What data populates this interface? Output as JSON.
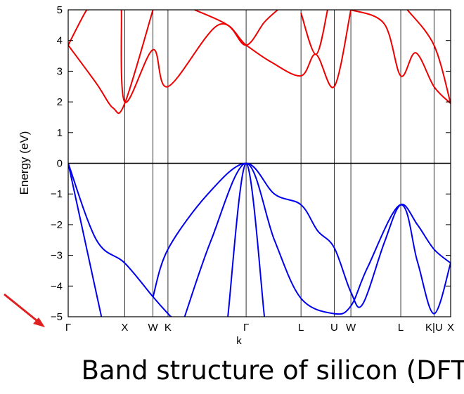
{
  "chart_data": {
    "type": "line",
    "title": "",
    "xlabel": "k",
    "ylabel": "Energy (eV)",
    "caption": "Band structure of silicon (DFT)",
    "ylim": [
      -5,
      5
    ],
    "xlim": [
      0,
      11.5
    ],
    "yticks": [
      "5",
      "4",
      "3",
      "2",
      "1",
      "0",
      "−1",
      "−2",
      "−3",
      "−4",
      "−5"
    ],
    "ytick_values": [
      5,
      4,
      3,
      2,
      1,
      0,
      -1,
      -2,
      -3,
      -4,
      -5
    ],
    "kpoints": [
      {
        "label": "Γ",
        "x": 0
      },
      {
        "label": "X",
        "x": 1.7
      },
      {
        "label": "W",
        "x": 2.55
      },
      {
        "label": "K",
        "x": 3.0
      },
      {
        "label": "Γ",
        "x": 5.35
      },
      {
        "label": "L",
        "x": 7.0
      },
      {
        "label": "U",
        "x": 8.0
      },
      {
        "label": "W",
        "x": 8.5
      },
      {
        "label": "L",
        "x": 10.0
      },
      {
        "label": "K|U",
        "x": 11.0
      },
      {
        "label": "X",
        "x": 11.5
      }
    ],
    "series": [
      {
        "color": "#0000ee",
        "points": [
          [
            0,
            0
          ],
          [
            0.85,
            -2.5
          ],
          [
            1.7,
            -3.25
          ],
          [
            2.55,
            -4.35
          ],
          [
            3.0,
            -4.9
          ],
          [
            3.1,
            -5.0
          ]
        ]
      },
      {
        "color": "#0000ee",
        "points": [
          [
            0,
            0
          ],
          [
            0.8,
            -4.0
          ],
          [
            1.0,
            -5.0
          ]
        ]
      },
      {
        "color": "#0000ee",
        "points": [
          [
            2.55,
            -4.35
          ],
          [
            3.0,
            -2.8
          ],
          [
            4.2,
            -1.0
          ],
          [
            5.35,
            0
          ],
          [
            6.2,
            -1.0
          ],
          [
            7.0,
            -1.35
          ],
          [
            7.5,
            -2.2
          ],
          [
            8.0,
            -2.75
          ],
          [
            8.5,
            -4.2
          ],
          [
            8.85,
            -4.6
          ],
          [
            9.5,
            -2.6
          ],
          [
            10.0,
            -1.35
          ],
          [
            10.5,
            -2.0
          ],
          [
            11.0,
            -2.8
          ],
          [
            11.5,
            -3.25
          ]
        ]
      },
      {
        "color": "#0000ee",
        "points": [
          [
            3.5,
            -5.0
          ],
          [
            4.3,
            -2.5
          ],
          [
            5.35,
            0
          ],
          [
            6.2,
            -2.5
          ],
          [
            7.0,
            -4.4
          ],
          [
            8.0,
            -4.9
          ],
          [
            8.5,
            -4.65
          ],
          [
            9.0,
            -3.4
          ],
          [
            10.0,
            -1.35
          ],
          [
            10.5,
            -3.2
          ],
          [
            11.0,
            -4.9
          ],
          [
            11.5,
            -3.25
          ]
        ]
      },
      {
        "color": "#0000ee",
        "points": [
          [
            4.8,
            -5.0
          ],
          [
            5.35,
            0
          ],
          [
            5.9,
            -5.0
          ]
        ]
      },
      {
        "color": "#ee0000",
        "points": [
          [
            0,
            3.85
          ],
          [
            0.85,
            2.6
          ],
          [
            1.35,
            1.8
          ],
          [
            1.7,
            1.95
          ],
          [
            2.55,
            5.0
          ]
        ]
      },
      {
        "color": "#ee0000",
        "points": [
          [
            0,
            3.85
          ],
          [
            0.5,
            4.9
          ],
          [
            0.6,
            5.0
          ]
        ]
      },
      {
        "color": "#ee0000",
        "points": [
          [
            1.6,
            5.0
          ],
          [
            1.7,
            2.0
          ],
          [
            2.55,
            3.7
          ],
          [
            3.0,
            2.5
          ],
          [
            4.5,
            4.5
          ],
          [
            5.35,
            3.85
          ],
          [
            6.1,
            3.3
          ],
          [
            7.0,
            2.85
          ],
          [
            7.45,
            3.55
          ],
          [
            8.0,
            2.5
          ],
          [
            8.5,
            5.0
          ]
        ]
      },
      {
        "color": "#ee0000",
        "points": [
          [
            3.8,
            5.0
          ],
          [
            4.8,
            4.5
          ],
          [
            5.35,
            3.85
          ],
          [
            5.9,
            4.6
          ],
          [
            6.3,
            5.0
          ]
        ]
      },
      {
        "color": "#ee0000",
        "points": [
          [
            7.0,
            4.9
          ],
          [
            7.45,
            3.55
          ],
          [
            7.8,
            5.0
          ]
        ]
      },
      {
        "color": "#ee0000",
        "points": [
          [
            8.5,
            5.0
          ],
          [
            9.5,
            4.55
          ],
          [
            10.0,
            2.85
          ],
          [
            10.45,
            3.6
          ],
          [
            11.0,
            2.5
          ],
          [
            11.5,
            1.95
          ]
        ]
      },
      {
        "color": "#ee0000",
        "points": [
          [
            10.2,
            5.0
          ],
          [
            11.0,
            3.85
          ],
          [
            11.5,
            1.95
          ]
        ]
      }
    ]
  },
  "colors": {
    "valence": "#0000ee",
    "conduction": "#ee0000",
    "arrow": "#e02020"
  }
}
